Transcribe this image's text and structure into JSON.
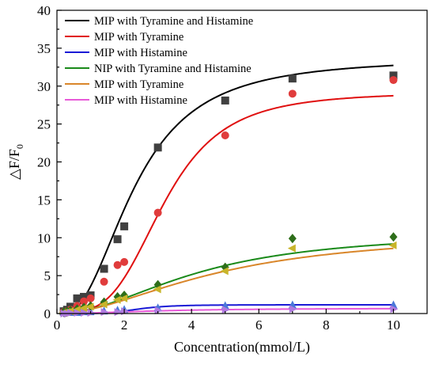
{
  "chart_data": {
    "type": "scatter",
    "title": "",
    "xlabel": "Concentration(mmol/L)",
    "ylabel_main": "△F/F",
    "ylabel_sub": "0",
    "xlim": [
      0,
      11
    ],
    "ylim": [
      0,
      40
    ],
    "xticks": [
      0,
      2,
      4,
      6,
      8,
      10
    ],
    "yticks": [
      0,
      5,
      10,
      15,
      20,
      25,
      30,
      35,
      40
    ],
    "grid": false,
    "legend_position": "top-left",
    "series": [
      {
        "name": "MIP with Tyramine and Histamine",
        "color": "#000000",
        "marker": "square",
        "marker_color": "#404040",
        "x": [
          0.2,
          0.3,
          0.4,
          0.6,
          0.8,
          1.0,
          1.4,
          1.8,
          2.0,
          3.0,
          5.0,
          7.0,
          10.0
        ],
        "y": [
          0.3,
          0.5,
          0.9,
          2.0,
          2.2,
          2.4,
          5.9,
          9.8,
          11.5,
          21.9,
          28.1,
          31.0,
          31.4
        ],
        "fit": {
          "A1": -0.5,
          "A2": 33.7,
          "x0": 2.3,
          "p": 2.4
        }
      },
      {
        "name": "MIP with Tyramine",
        "color": "#e01010",
        "marker": "circle",
        "marker_color": "#e03c3c",
        "x": [
          0.2,
          0.3,
          0.4,
          0.6,
          0.8,
          1.0,
          1.4,
          1.8,
          2.0,
          3.0,
          5.0,
          7.0,
          10.0
        ],
        "y": [
          0.2,
          0.3,
          0.5,
          1.0,
          1.6,
          2.0,
          4.2,
          6.4,
          6.8,
          13.3,
          23.5,
          29.0,
          30.8
        ],
        "fit": {
          "A1": 0.2,
          "A2": 29.2,
          "x0": 3.2,
          "p": 3.6
        }
      },
      {
        "name": "MIP with Histamine",
        "color": "#1a1ad6",
        "marker": "triangle-up",
        "marker_color": "#4a78d8",
        "x": [
          0.2,
          0.3,
          0.4,
          0.6,
          0.8,
          1.0,
          1.4,
          1.8,
          2.0,
          3.0,
          5.0,
          7.0,
          10.0
        ],
        "y": [
          0.1,
          0.1,
          0.1,
          0.1,
          0.2,
          0.2,
          0.3,
          0.4,
          0.5,
          0.7,
          1.0,
          1.1,
          1.1
        ],
        "fit": {
          "A1": 0.0,
          "A2": 1.15,
          "x0": 2.4,
          "p": 5.0
        }
      },
      {
        "name": "NIP with Tyramine and Histamine",
        "color": "#1a8a1a",
        "marker": "diamond",
        "marker_color": "#2e6e1a",
        "x": [
          0.2,
          0.3,
          0.4,
          0.6,
          0.8,
          1.0,
          1.4,
          1.8,
          2.0,
          3.0,
          5.0,
          7.0,
          10.0
        ],
        "y": [
          0.2,
          0.3,
          0.4,
          0.6,
          0.8,
          1.0,
          1.5,
          2.2,
          2.4,
          3.8,
          6.1,
          9.9,
          10.1
        ],
        "fit": {
          "A1": 0.0,
          "A2": 10.8,
          "x0": 4.2,
          "p": 2.0
        }
      },
      {
        "name": "MIP with Tyramine",
        "color": "#d9862a",
        "marker": "triangle-left",
        "marker_color": "#c8b52a",
        "x": [
          0.2,
          0.3,
          0.4,
          0.6,
          0.8,
          1.0,
          1.4,
          1.8,
          2.0,
          3.0,
          5.0,
          7.0,
          10.0
        ],
        "y": [
          0.1,
          0.2,
          0.3,
          0.5,
          0.7,
          0.9,
          1.2,
          1.8,
          2.0,
          3.2,
          5.6,
          8.6,
          9.0
        ],
        "fit": {
          "A1": 0.0,
          "A2": 10.8,
          "x0": 4.8,
          "p": 1.85
        }
      },
      {
        "name": "MIP with Histamine",
        "color": "#e85ad8",
        "marker": "triangle-right",
        "marker_color": "#b07ae0",
        "x": [
          0.2,
          0.3,
          0.4,
          0.6,
          0.8,
          1.0,
          1.4,
          1.8,
          2.0,
          3.0,
          5.0,
          7.0,
          10.0
        ],
        "y": [
          0.0,
          0.0,
          0.1,
          0.1,
          0.1,
          0.1,
          0.2,
          0.2,
          0.3,
          0.4,
          0.5,
          0.6,
          0.6
        ],
        "fit": {
          "A1": 0.0,
          "A2": 0.7,
          "x0": 3.0,
          "p": 2.0
        }
      }
    ]
  }
}
